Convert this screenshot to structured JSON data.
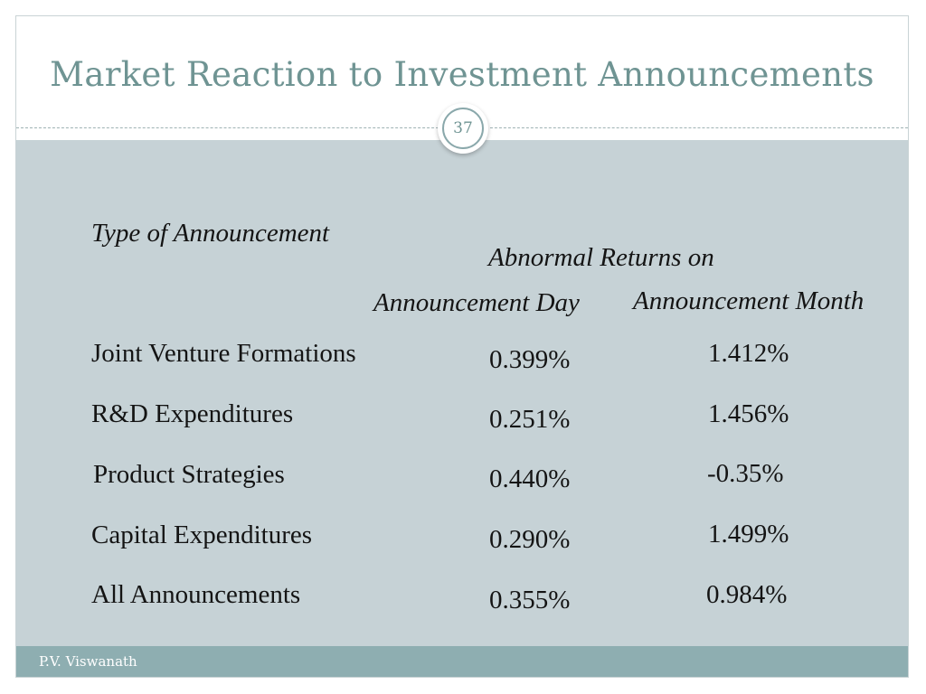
{
  "slide": {
    "title": "Market Reaction to Investment Announcements",
    "page_number": "37",
    "footer": "P.V. Viswanath"
  },
  "table": {
    "col_type_header": "Type of Announcement",
    "group_header": "Abnormal Returns on",
    "col_day_header": "Announcement Day",
    "col_month_header": "Announcement Month",
    "rows": [
      {
        "type": "Joint Venture Formations",
        "day": "0.399%",
        "month": "1.412%"
      },
      {
        "type": "R&D Expenditures",
        "day": "0.251%",
        "month": "1.456%"
      },
      {
        "type": "Product Strategies",
        "day": "0.440%",
        "month": "-0.35%"
      },
      {
        "type": "Capital Expenditures",
        "day": "0.290%",
        "month": "1.499%"
      },
      {
        "type": "All Announcements",
        "day": "0.355%",
        "month": "0.984%"
      }
    ]
  },
  "colors": {
    "title": "#6f9493",
    "content_bg": "#c6d2d6",
    "footer_bg": "#8eaeb1"
  }
}
